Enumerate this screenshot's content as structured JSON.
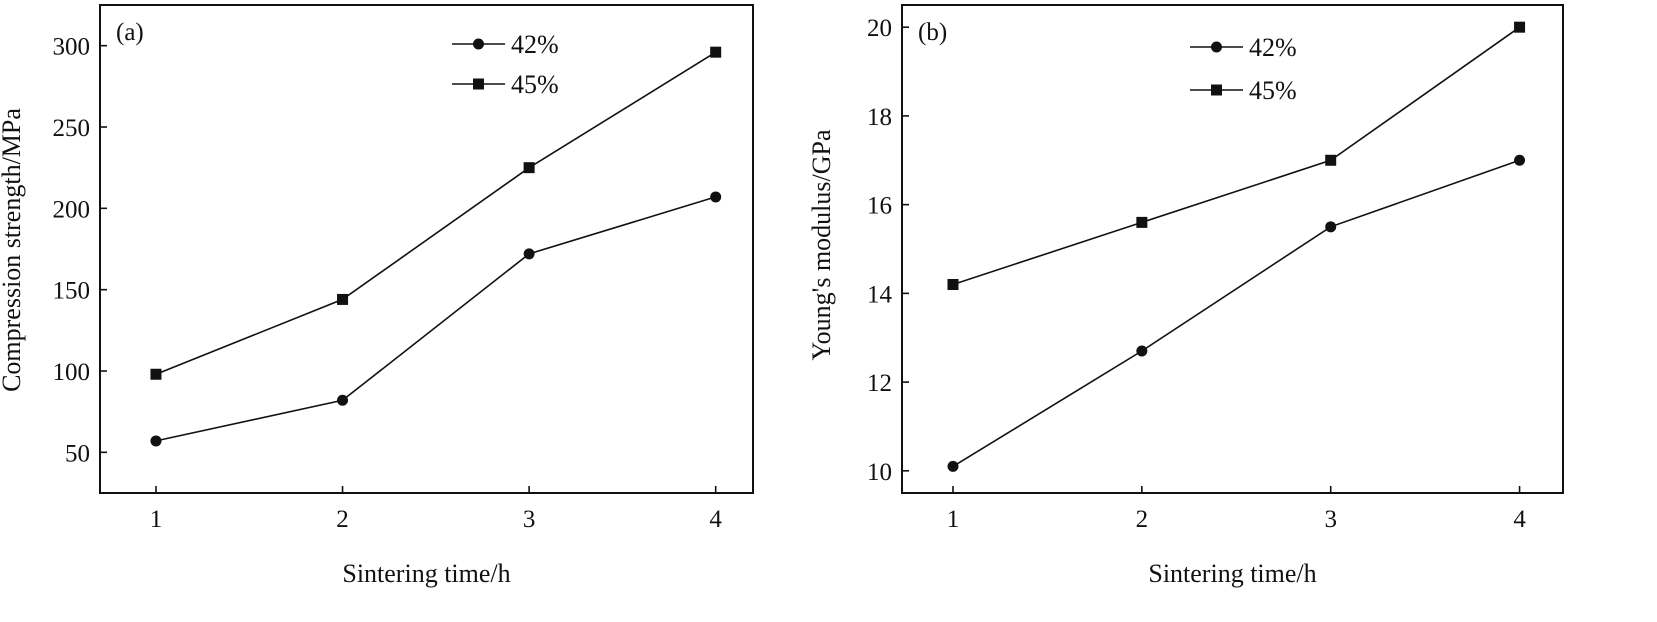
{
  "chart_data": [
    {
      "type": "line",
      "panel_label": "(a)",
      "xlabel": "Sintering time/h",
      "ylabel": "Compression strength/MPa",
      "x": [
        1,
        2,
        3,
        4
      ],
      "x_ticks": [
        1,
        2,
        3,
        4
      ],
      "y_ticks": [
        50,
        100,
        150,
        200,
        250,
        300
      ],
      "xlim": [
        0.7,
        4.2
      ],
      "ylim": [
        25,
        325
      ],
      "grid": false,
      "legend_position": "top-right",
      "series": [
        {
          "name": "42%",
          "marker": "circle",
          "values": [
            57,
            82,
            172,
            207
          ]
        },
        {
          "name": "45%",
          "marker": "square",
          "values": [
            98,
            144,
            225,
            296
          ]
        }
      ]
    },
    {
      "type": "line",
      "panel_label": "(b)",
      "xlabel": "Sintering time/h",
      "ylabel": "Young's modulus/GPa",
      "x": [
        1,
        2,
        3,
        4
      ],
      "x_ticks": [
        1,
        2,
        3,
        4
      ],
      "y_ticks": [
        10,
        12,
        14,
        16,
        18,
        20
      ],
      "xlim": [
        0.73,
        4.23
      ],
      "ylim": [
        9.5,
        20.5
      ],
      "grid": false,
      "legend_position": "top-right",
      "series": [
        {
          "name": "42%",
          "marker": "circle",
          "values": [
            10.1,
            12.7,
            15.5,
            17.0
          ]
        },
        {
          "name": "45%",
          "marker": "square",
          "values": [
            14.2,
            15.6,
            17.0,
            20.0
          ]
        }
      ]
    }
  ]
}
